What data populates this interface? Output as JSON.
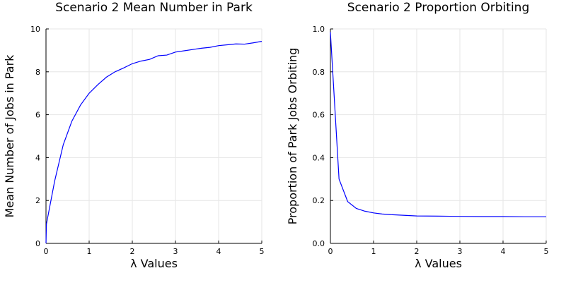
{
  "chart_data": [
    {
      "type": "line",
      "title": "Scenario 2 Mean Number in Park",
      "xlabel": "λ Values",
      "ylabel": "Mean Number of Jobs in Park",
      "xlim": [
        0,
        5
      ],
      "ylim": [
        0,
        10
      ],
      "xticks": [
        0,
        1,
        2,
        3,
        4,
        5
      ],
      "yticks": [
        0,
        2,
        4,
        6,
        8,
        10
      ],
      "xtick_labels": [
        "0",
        "1",
        "2",
        "3",
        "4",
        "5"
      ],
      "ytick_labels": [
        "0",
        "2",
        "4",
        "6",
        "8",
        "10"
      ],
      "grid": true,
      "legend": "none",
      "series": [
        {
          "color": "#0000ff",
          "x": [
            0.0,
            0.01,
            0.2,
            0.4,
            0.6,
            0.8,
            1.0,
            1.2,
            1.4,
            1.6,
            1.8,
            2.0,
            2.2,
            2.4,
            2.6,
            2.8,
            3.0,
            3.2,
            3.4,
            3.6,
            3.8,
            4.0,
            4.2,
            4.4,
            4.6,
            4.8,
            5.0
          ],
          "y": [
            0.0,
            0.9,
            2.9,
            4.6,
            5.7,
            6.45,
            7.0,
            7.4,
            7.75,
            8.0,
            8.18,
            8.38,
            8.5,
            8.58,
            8.75,
            8.78,
            8.92,
            8.98,
            9.04,
            9.1,
            9.14,
            9.22,
            9.26,
            9.3,
            9.29,
            9.35,
            9.42
          ]
        }
      ]
    },
    {
      "type": "line",
      "title": "Scenario 2 Proportion Orbiting",
      "xlabel": "λ Values",
      "ylabel": "Proportion of Park Jobs Orbiting",
      "xlim": [
        0,
        5
      ],
      "ylim": [
        0,
        1
      ],
      "xticks": [
        0,
        1,
        2,
        3,
        4,
        5
      ],
      "yticks": [
        0.0,
        0.2,
        0.4,
        0.6,
        0.8,
        1.0
      ],
      "xtick_labels": [
        "0",
        "1",
        "2",
        "3",
        "4",
        "5"
      ],
      "ytick_labels": [
        "0.0",
        "0.2",
        "0.4",
        "0.6",
        "0.8",
        "1.0"
      ],
      "grid": true,
      "legend": "none",
      "series": [
        {
          "color": "#0000ff",
          "x": [
            0.0,
            0.01,
            0.2,
            0.4,
            0.6,
            0.8,
            1.0,
            1.2,
            1.4,
            1.6,
            1.8,
            2.0,
            2.5,
            3.0,
            3.5,
            4.0,
            4.5,
            5.0
          ],
          "y": [
            0.985,
            0.95,
            0.3,
            0.195,
            0.163,
            0.15,
            0.142,
            0.137,
            0.134,
            0.132,
            0.13,
            0.128,
            0.127,
            0.126,
            0.125,
            0.125,
            0.124,
            0.124
          ]
        }
      ]
    }
  ]
}
